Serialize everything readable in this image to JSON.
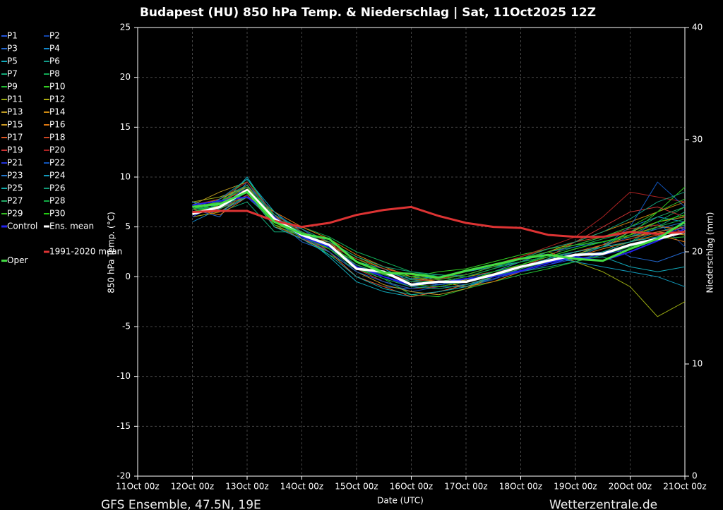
{
  "chart_data": {
    "type": "line",
    "title": "Budapest  (HU)  850 hPa Temp. & Niederschlag | Sat, 11Oct2025 12Z",
    "x_label": "Date (UTC)",
    "y_label": "850 hPa Temp. (°C)",
    "y2_label": "Niederschlag (mm)",
    "footer_left": "GFS Ensemble, 47.5N, 19E",
    "footer_right": "Wetterzentrale.de",
    "grid": true,
    "x": [
      24,
      36,
      48,
      60,
      72,
      84,
      96,
      108,
      120,
      132,
      144,
      156,
      168,
      180,
      192,
      204,
      216,
      228,
      240
    ],
    "xlim": [
      0,
      240
    ],
    "xticks": [
      {
        "value": 0,
        "label": "11Oct 00z"
      },
      {
        "value": 24,
        "label": "12Oct 00z"
      },
      {
        "value": 48,
        "label": "13Oct 00z"
      },
      {
        "value": 72,
        "label": "14Oct 00z"
      },
      {
        "value": 96,
        "label": "15Oct 00z"
      },
      {
        "value": 120,
        "label": "16Oct 00z"
      },
      {
        "value": 144,
        "label": "17Oct 00z"
      },
      {
        "value": 168,
        "label": "18Oct 00z"
      },
      {
        "value": 192,
        "label": "19Oct 00z"
      },
      {
        "value": 216,
        "label": "20Oct 00z"
      },
      {
        "value": 240,
        "label": "21Oct 00z"
      }
    ],
    "ylim": [
      -20,
      25
    ],
    "yticks": [
      -20,
      -15,
      -10,
      -5,
      0,
      5,
      10,
      15,
      20,
      25
    ],
    "y2lim": [
      0,
      40
    ],
    "y2ticks": [
      0,
      10,
      20,
      30,
      40
    ],
    "series": [
      {
        "name": "P1",
        "color": "#2255dd",
        "values": [
          7.0,
          6.5,
          8.0,
          5.5,
          4.0,
          3.5,
          1.0,
          0.0,
          -1.0,
          -0.5,
          -0.8,
          0.0,
          0.5,
          1.2,
          2.0,
          2.5,
          3.0,
          4.0,
          5.0
        ]
      },
      {
        "name": "P2",
        "color": "#1144aa",
        "values": [
          6.0,
          7.5,
          9.0,
          6.5,
          4.5,
          2.8,
          0.5,
          -0.5,
          -1.5,
          -1.0,
          -1.0,
          -0.3,
          0.8,
          1.5,
          2.5,
          3.0,
          4.0,
          5.5,
          3.0
        ]
      },
      {
        "name": "P3",
        "color": "#2266cc",
        "values": [
          6.8,
          6.0,
          9.5,
          5.8,
          3.5,
          2.5,
          0.0,
          -1.0,
          -1.2,
          -0.8,
          -0.5,
          0.5,
          1.2,
          2.0,
          2.8,
          3.5,
          2.0,
          1.5,
          2.5
        ]
      },
      {
        "name": "P4",
        "color": "#1188cc",
        "values": [
          5.5,
          6.8,
          8.5,
          6.2,
          4.8,
          3.0,
          1.5,
          0.8,
          -0.5,
          0.0,
          0.2,
          1.0,
          1.8,
          2.5,
          3.2,
          4.0,
          5.0,
          6.0,
          5.5
        ]
      },
      {
        "name": "P5",
        "color": "#11aabb",
        "values": [
          7.5,
          7.0,
          10.0,
          6.0,
          4.2,
          2.0,
          -0.5,
          -1.5,
          -2.0,
          -1.5,
          -1.0,
          0.0,
          1.0,
          1.5,
          1.8,
          2.0,
          1.0,
          0.5,
          1.0
        ]
      },
      {
        "name": "P6",
        "color": "#119988",
        "values": [
          6.2,
          7.8,
          9.2,
          5.0,
          3.8,
          3.5,
          2.0,
          1.0,
          0.0,
          0.2,
          0.0,
          0.8,
          1.5,
          2.0,
          2.5,
          3.0,
          3.5,
          4.5,
          5.2
        ]
      },
      {
        "name": "P7",
        "color": "#11aa77",
        "values": [
          7.2,
          6.5,
          7.5,
          4.5,
          4.5,
          2.8,
          1.2,
          0.2,
          -0.3,
          -0.5,
          -1.0,
          -0.2,
          0.5,
          1.0,
          1.5,
          2.5,
          3.5,
          5.0,
          6.5
        ]
      },
      {
        "name": "P8",
        "color": "#11aa55",
        "values": [
          6.5,
          7.2,
          8.0,
          5.8,
          5.0,
          4.0,
          2.5,
          1.5,
          0.5,
          0.0,
          -0.5,
          0.5,
          1.2,
          2.2,
          3.0,
          3.8,
          4.5,
          5.5,
          7.0
        ]
      },
      {
        "name": "P9",
        "color": "#22bb33",
        "values": [
          7.0,
          6.8,
          8.8,
          6.5,
          4.2,
          2.2,
          0.8,
          -0.2,
          -1.8,
          -2.0,
          -1.2,
          -0.5,
          0.2,
          0.8,
          1.5,
          2.2,
          3.0,
          3.8,
          4.0
        ]
      },
      {
        "name": "P10",
        "color": "#33cc22",
        "values": [
          6.8,
          7.5,
          9.8,
          6.0,
          4.0,
          3.2,
          1.8,
          0.5,
          0.0,
          0.5,
          0.8,
          1.5,
          2.2,
          2.8,
          3.2,
          3.5,
          4.2,
          6.5,
          9.0
        ]
      },
      {
        "name": "P11",
        "color": "#99aa11",
        "values": [
          7.5,
          8.0,
          9.0,
          5.2,
          4.5,
          3.5,
          2.0,
          0.8,
          0.2,
          -0.2,
          0.5,
          1.0,
          1.8,
          2.5,
          1.5,
          0.5,
          -1.0,
          -4.0,
          -2.5
        ]
      },
      {
        "name": "P12",
        "color": "#aaaa11",
        "values": [
          6.0,
          6.5,
          8.2,
          5.5,
          4.8,
          3.0,
          1.0,
          0.3,
          -0.5,
          -0.8,
          -0.3,
          0.3,
          1.0,
          1.8,
          2.5,
          3.0,
          4.2,
          5.0,
          4.8
        ]
      },
      {
        "name": "P13",
        "color": "#bb9922",
        "values": [
          7.2,
          8.5,
          9.5,
          6.2,
          3.8,
          2.5,
          0.5,
          -0.8,
          -1.5,
          -1.8,
          -1.2,
          0.0,
          0.8,
          1.5,
          2.2,
          3.2,
          4.5,
          5.5,
          6.0
        ]
      },
      {
        "name": "P14",
        "color": "#cc8811",
        "values": [
          6.5,
          7.0,
          8.5,
          5.0,
          4.2,
          3.0,
          1.5,
          0.5,
          -0.2,
          -0.5,
          0.0,
          0.5,
          1.5,
          2.5,
          3.5,
          4.5,
          5.5,
          6.5,
          7.5
        ]
      },
      {
        "name": "P15",
        "color": "#cc9922",
        "values": [
          7.0,
          7.8,
          9.0,
          5.8,
          4.0,
          3.5,
          1.0,
          0.0,
          -0.8,
          -1.0,
          -0.5,
          0.3,
          1.2,
          2.0,
          2.8,
          3.5,
          4.0,
          4.5,
          4.2
        ]
      },
      {
        "name": "P16",
        "color": "#dd7711",
        "values": [
          6.8,
          6.2,
          8.0,
          6.5,
          5.0,
          3.8,
          2.2,
          1.0,
          0.0,
          -0.5,
          -1.0,
          -0.5,
          0.5,
          1.5,
          2.0,
          2.8,
          3.5,
          4.2,
          3.5
        ]
      },
      {
        "name": "P17",
        "color": "#dd5522",
        "values": [
          6.2,
          7.2,
          9.2,
          5.5,
          4.5,
          2.5,
          0.0,
          -1.0,
          -2.0,
          -1.5,
          -0.8,
          0.0,
          1.0,
          1.8,
          2.5,
          3.2,
          3.8,
          4.5,
          5.0
        ]
      },
      {
        "name": "P18",
        "color": "#cc4422",
        "values": [
          7.0,
          7.5,
          8.8,
          6.0,
          4.2,
          3.2,
          1.8,
          0.8,
          0.2,
          0.0,
          0.5,
          1.2,
          2.0,
          2.8,
          3.5,
          4.0,
          4.8,
          5.2,
          4.5
        ]
      },
      {
        "name": "P19",
        "color": "#cc3333",
        "values": [
          6.5,
          6.8,
          8.2,
          5.2,
          3.8,
          2.8,
          0.8,
          -0.5,
          -1.2,
          -1.0,
          -0.5,
          0.2,
          1.0,
          2.0,
          3.5,
          5.0,
          6.5,
          7.0,
          6.0
        ]
      },
      {
        "name": "P20",
        "color": "#aa2222",
        "values": [
          7.2,
          7.8,
          9.5,
          6.2,
          4.5,
          3.5,
          1.5,
          0.5,
          -0.5,
          -0.2,
          0.2,
          1.0,
          2.0,
          3.0,
          4.0,
          6.0,
          8.5,
          8.0,
          7.5
        ]
      },
      {
        "name": "P21",
        "color": "#2233dd",
        "values": [
          6.0,
          7.5,
          8.5,
          5.8,
          4.8,
          3.0,
          1.2,
          0.0,
          -1.0,
          -1.2,
          -0.8,
          -0.2,
          0.5,
          1.2,
          1.8,
          2.2,
          2.8,
          4.0,
          5.0
        ]
      },
      {
        "name": "P22",
        "color": "#1155bb",
        "values": [
          6.8,
          7.0,
          9.0,
          6.0,
          4.0,
          2.5,
          0.5,
          -0.5,
          -1.2,
          -0.8,
          -0.2,
          0.5,
          1.0,
          1.5,
          2.0,
          3.0,
          5.0,
          9.5,
          7.0
        ]
      },
      {
        "name": "P23",
        "color": "#2277cc",
        "values": [
          7.5,
          6.5,
          8.0,
          5.5,
          4.5,
          3.2,
          1.0,
          0.2,
          -0.5,
          -0.8,
          -0.5,
          0.5,
          1.5,
          2.5,
          3.0,
          3.5,
          4.0,
          4.8,
          5.5
        ]
      },
      {
        "name": "P24",
        "color": "#1199bb",
        "values": [
          6.2,
          7.8,
          9.8,
          6.5,
          4.2,
          3.0,
          1.5,
          0.5,
          -0.2,
          0.0,
          0.5,
          1.0,
          1.5,
          2.0,
          1.5,
          1.0,
          0.5,
          0.0,
          -1.0
        ]
      },
      {
        "name": "P25",
        "color": "#11aaaa",
        "values": [
          7.0,
          7.2,
          8.5,
          5.0,
          3.8,
          2.2,
          0.0,
          -1.2,
          -1.8,
          -1.5,
          -1.0,
          0.0,
          1.0,
          1.8,
          2.5,
          3.0,
          3.5,
          4.0,
          5.5
        ]
      },
      {
        "name": "P26",
        "color": "#119977",
        "values": [
          6.5,
          7.5,
          9.2,
          6.2,
          4.8,
          3.5,
          2.0,
          1.0,
          0.5,
          0.2,
          0.0,
          0.8,
          1.8,
          2.8,
          3.5,
          4.5,
          5.8,
          7.5,
          8.5
        ]
      },
      {
        "name": "P27",
        "color": "#22aa66",
        "values": [
          7.2,
          6.8,
          8.0,
          5.5,
          4.0,
          2.8,
          0.8,
          -0.2,
          -1.0,
          -1.2,
          -0.8,
          0.0,
          0.8,
          1.5,
          2.2,
          3.0,
          4.5,
          6.0,
          7.0
        ]
      },
      {
        "name": "P28",
        "color": "#11aa44",
        "values": [
          6.8,
          7.0,
          8.8,
          5.8,
          4.5,
          3.2,
          1.2,
          0.2,
          -0.5,
          -0.5,
          0.0,
          0.8,
          1.5,
          2.0,
          2.8,
          3.5,
          4.0,
          5.0,
          5.8
        ]
      },
      {
        "name": "P29",
        "color": "#33bb22",
        "values": [
          7.0,
          7.5,
          9.0,
          6.0,
          4.2,
          3.0,
          1.5,
          0.5,
          0.0,
          -0.3,
          0.2,
          1.0,
          1.8,
          2.5,
          3.2,
          4.0,
          5.0,
          6.5,
          7.8
        ]
      },
      {
        "name": "P30",
        "color": "#22cc11",
        "values": [
          6.5,
          7.2,
          8.5,
          5.2,
          4.0,
          2.8,
          0.8,
          0.0,
          -0.8,
          -1.0,
          -0.5,
          0.5,
          1.2,
          2.0,
          2.8,
          3.5,
          4.2,
          5.5,
          6.2
        ]
      },
      {
        "name": "Control",
        "color": "#2222ee",
        "values": [
          7.2,
          7.6,
          8.0,
          6.0,
          4.0,
          3.0,
          1.0,
          0.0,
          -0.8,
          -0.6,
          -0.2,
          0.0,
          0.6,
          1.4,
          2.0,
          1.6,
          2.5,
          3.6,
          4.8
        ]
      },
      {
        "name": "Ens. mean",
        "color": "#ffffff",
        "values": [
          6.3,
          7.0,
          8.7,
          5.8,
          4.2,
          3.2,
          0.8,
          0.5,
          -0.8,
          -0.5,
          -0.5,
          0.2,
          1.0,
          1.6,
          2.2,
          2.3,
          3.2,
          3.8,
          4.5
        ]
      },
      {
        "name": "1991-2020 mean",
        "color": "#dd3333",
        "values": [
          6.5,
          6.6,
          6.6,
          5.6,
          5.0,
          5.4,
          6.2,
          6.7,
          7.0,
          6.1,
          5.4,
          5.0,
          4.9,
          4.2,
          4.0,
          4.0,
          4.5,
          4.3,
          4.5
        ]
      },
      {
        "name": "Oper",
        "color": "#44dd44",
        "values": [
          7.0,
          7.3,
          8.5,
          5.5,
          4.3,
          3.8,
          1.5,
          0.4,
          0.3,
          -0.1,
          0.6,
          1.2,
          1.8,
          2.2,
          1.8,
          1.6,
          2.8,
          3.8,
          5.5
        ]
      }
    ]
  }
}
